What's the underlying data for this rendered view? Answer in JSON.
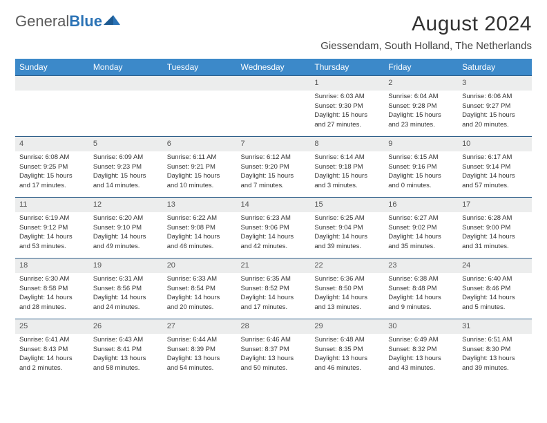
{
  "brand": {
    "left": "General",
    "right": "Blue"
  },
  "title": "August 2024",
  "location": "Giessendam, South Holland, The Netherlands",
  "header_bg": "#3c89c9",
  "daybar_bg": "#eceded",
  "dow": [
    "Sunday",
    "Monday",
    "Tuesday",
    "Wednesday",
    "Thursday",
    "Friday",
    "Saturday"
  ],
  "weeks": [
    [
      {
        "n": "",
        "empty": true
      },
      {
        "n": "",
        "empty": true
      },
      {
        "n": "",
        "empty": true
      },
      {
        "n": "",
        "empty": true
      },
      {
        "n": "1",
        "sr": "Sunrise: 6:03 AM",
        "ss": "Sunset: 9:30 PM",
        "dl1": "Daylight: 15 hours",
        "dl2": "and 27 minutes."
      },
      {
        "n": "2",
        "sr": "Sunrise: 6:04 AM",
        "ss": "Sunset: 9:28 PM",
        "dl1": "Daylight: 15 hours",
        "dl2": "and 23 minutes."
      },
      {
        "n": "3",
        "sr": "Sunrise: 6:06 AM",
        "ss": "Sunset: 9:27 PM",
        "dl1": "Daylight: 15 hours",
        "dl2": "and 20 minutes."
      }
    ],
    [
      {
        "n": "4",
        "sr": "Sunrise: 6:08 AM",
        "ss": "Sunset: 9:25 PM",
        "dl1": "Daylight: 15 hours",
        "dl2": "and 17 minutes."
      },
      {
        "n": "5",
        "sr": "Sunrise: 6:09 AM",
        "ss": "Sunset: 9:23 PM",
        "dl1": "Daylight: 15 hours",
        "dl2": "and 14 minutes."
      },
      {
        "n": "6",
        "sr": "Sunrise: 6:11 AM",
        "ss": "Sunset: 9:21 PM",
        "dl1": "Daylight: 15 hours",
        "dl2": "and 10 minutes."
      },
      {
        "n": "7",
        "sr": "Sunrise: 6:12 AM",
        "ss": "Sunset: 9:20 PM",
        "dl1": "Daylight: 15 hours",
        "dl2": "and 7 minutes."
      },
      {
        "n": "8",
        "sr": "Sunrise: 6:14 AM",
        "ss": "Sunset: 9:18 PM",
        "dl1": "Daylight: 15 hours",
        "dl2": "and 3 minutes."
      },
      {
        "n": "9",
        "sr": "Sunrise: 6:15 AM",
        "ss": "Sunset: 9:16 PM",
        "dl1": "Daylight: 15 hours",
        "dl2": "and 0 minutes."
      },
      {
        "n": "10",
        "sr": "Sunrise: 6:17 AM",
        "ss": "Sunset: 9:14 PM",
        "dl1": "Daylight: 14 hours",
        "dl2": "and 57 minutes."
      }
    ],
    [
      {
        "n": "11",
        "sr": "Sunrise: 6:19 AM",
        "ss": "Sunset: 9:12 PM",
        "dl1": "Daylight: 14 hours",
        "dl2": "and 53 minutes."
      },
      {
        "n": "12",
        "sr": "Sunrise: 6:20 AM",
        "ss": "Sunset: 9:10 PM",
        "dl1": "Daylight: 14 hours",
        "dl2": "and 49 minutes."
      },
      {
        "n": "13",
        "sr": "Sunrise: 6:22 AM",
        "ss": "Sunset: 9:08 PM",
        "dl1": "Daylight: 14 hours",
        "dl2": "and 46 minutes."
      },
      {
        "n": "14",
        "sr": "Sunrise: 6:23 AM",
        "ss": "Sunset: 9:06 PM",
        "dl1": "Daylight: 14 hours",
        "dl2": "and 42 minutes."
      },
      {
        "n": "15",
        "sr": "Sunrise: 6:25 AM",
        "ss": "Sunset: 9:04 PM",
        "dl1": "Daylight: 14 hours",
        "dl2": "and 39 minutes."
      },
      {
        "n": "16",
        "sr": "Sunrise: 6:27 AM",
        "ss": "Sunset: 9:02 PM",
        "dl1": "Daylight: 14 hours",
        "dl2": "and 35 minutes."
      },
      {
        "n": "17",
        "sr": "Sunrise: 6:28 AM",
        "ss": "Sunset: 9:00 PM",
        "dl1": "Daylight: 14 hours",
        "dl2": "and 31 minutes."
      }
    ],
    [
      {
        "n": "18",
        "sr": "Sunrise: 6:30 AM",
        "ss": "Sunset: 8:58 PM",
        "dl1": "Daylight: 14 hours",
        "dl2": "and 28 minutes."
      },
      {
        "n": "19",
        "sr": "Sunrise: 6:31 AM",
        "ss": "Sunset: 8:56 PM",
        "dl1": "Daylight: 14 hours",
        "dl2": "and 24 minutes."
      },
      {
        "n": "20",
        "sr": "Sunrise: 6:33 AM",
        "ss": "Sunset: 8:54 PM",
        "dl1": "Daylight: 14 hours",
        "dl2": "and 20 minutes."
      },
      {
        "n": "21",
        "sr": "Sunrise: 6:35 AM",
        "ss": "Sunset: 8:52 PM",
        "dl1": "Daylight: 14 hours",
        "dl2": "and 17 minutes."
      },
      {
        "n": "22",
        "sr": "Sunrise: 6:36 AM",
        "ss": "Sunset: 8:50 PM",
        "dl1": "Daylight: 14 hours",
        "dl2": "and 13 minutes."
      },
      {
        "n": "23",
        "sr": "Sunrise: 6:38 AM",
        "ss": "Sunset: 8:48 PM",
        "dl1": "Daylight: 14 hours",
        "dl2": "and 9 minutes."
      },
      {
        "n": "24",
        "sr": "Sunrise: 6:40 AM",
        "ss": "Sunset: 8:46 PM",
        "dl1": "Daylight: 14 hours",
        "dl2": "and 5 minutes."
      }
    ],
    [
      {
        "n": "25",
        "sr": "Sunrise: 6:41 AM",
        "ss": "Sunset: 8:43 PM",
        "dl1": "Daylight: 14 hours",
        "dl2": "and 2 minutes."
      },
      {
        "n": "26",
        "sr": "Sunrise: 6:43 AM",
        "ss": "Sunset: 8:41 PM",
        "dl1": "Daylight: 13 hours",
        "dl2": "and 58 minutes."
      },
      {
        "n": "27",
        "sr": "Sunrise: 6:44 AM",
        "ss": "Sunset: 8:39 PM",
        "dl1": "Daylight: 13 hours",
        "dl2": "and 54 minutes."
      },
      {
        "n": "28",
        "sr": "Sunrise: 6:46 AM",
        "ss": "Sunset: 8:37 PM",
        "dl1": "Daylight: 13 hours",
        "dl2": "and 50 minutes."
      },
      {
        "n": "29",
        "sr": "Sunrise: 6:48 AM",
        "ss": "Sunset: 8:35 PM",
        "dl1": "Daylight: 13 hours",
        "dl2": "and 46 minutes."
      },
      {
        "n": "30",
        "sr": "Sunrise: 6:49 AM",
        "ss": "Sunset: 8:32 PM",
        "dl1": "Daylight: 13 hours",
        "dl2": "and 43 minutes."
      },
      {
        "n": "31",
        "sr": "Sunrise: 6:51 AM",
        "ss": "Sunset: 8:30 PM",
        "dl1": "Daylight: 13 hours",
        "dl2": "and 39 minutes."
      }
    ]
  ]
}
